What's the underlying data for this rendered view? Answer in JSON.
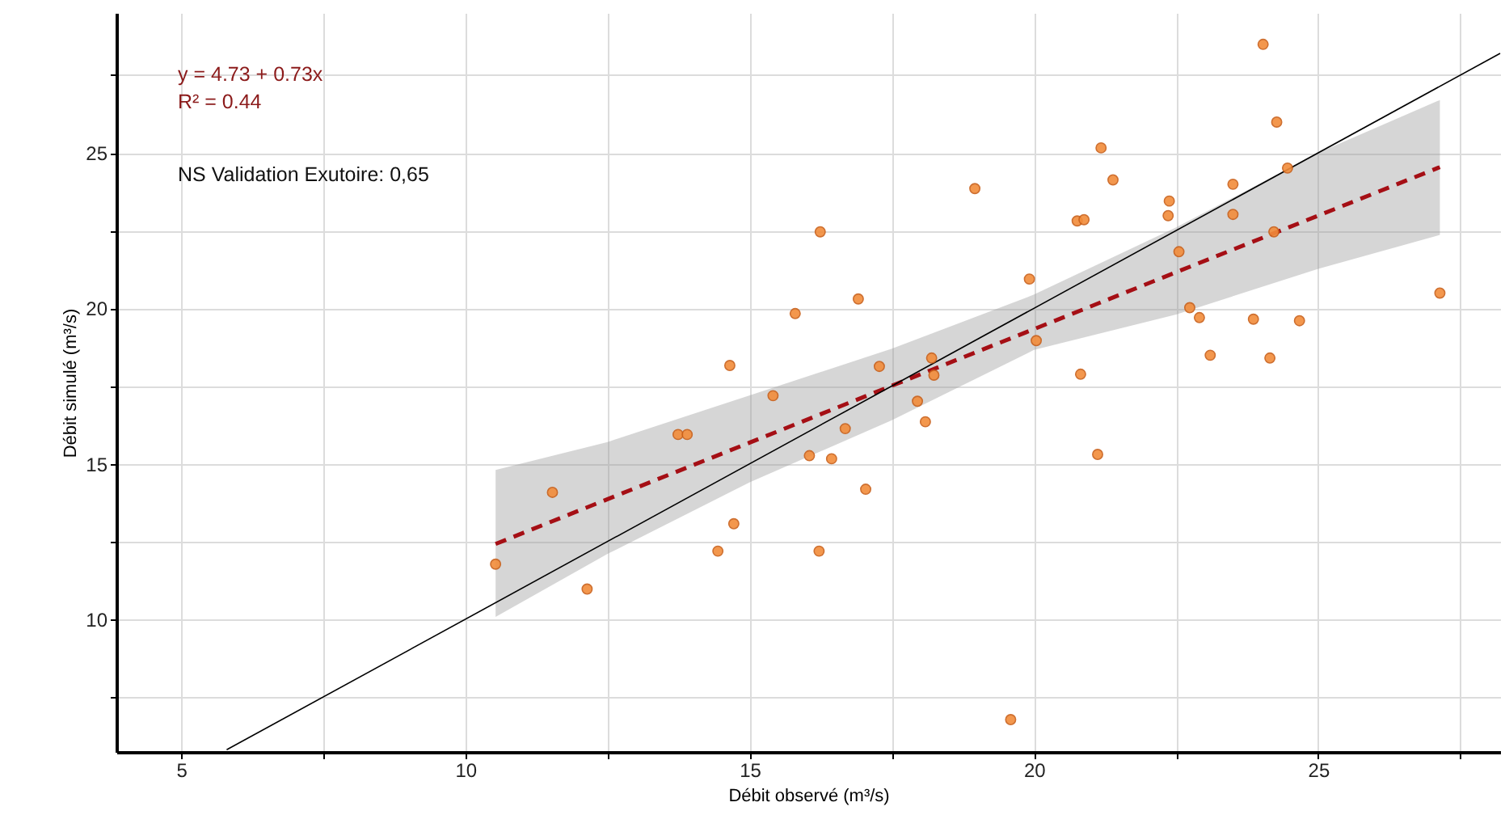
{
  "chart_data": {
    "type": "scatter",
    "xlabel": "Débit observé (m³/s)",
    "ylabel": "Débit simulé (m³/s)",
    "annotations": [
      "y = 4.73 + 0.73x",
      "R² = 0.44",
      "NS Validation Exutoire: 0,65"
    ],
    "xlim": [
      3.86,
      28.2
    ],
    "ylim": [
      5.73,
      29.5
    ],
    "xticks": [
      5,
      {
        "value": 7.5,
        "label": null
      },
      10,
      {
        "value": 12.5,
        "label": null
      },
      15,
      {
        "value": 17.5,
        "label": null
      },
      20,
      {
        "value": 22.5,
        "label": null
      },
      25,
      {
        "value": 27.5,
        "label": null
      }
    ],
    "yticks": [
      {
        "value": 7.5,
        "label": null
      },
      10,
      {
        "value": 12.5,
        "label": null
      },
      15,
      {
        "value": 17.5,
        "label": null
      },
      20,
      {
        "value": 22.5,
        "label": null
      },
      25,
      {
        "value": 27.5,
        "label": null
      }
    ],
    "grid": true,
    "series": [
      {
        "marker": "circle",
        "color": "#f28c3a",
        "x": [
          10.53,
          11.53,
          12.14,
          13.74,
          13.9,
          14.44,
          14.72,
          14.65,
          15.41,
          15.8,
          16.05,
          16.24,
          16.22,
          16.44,
          16.68,
          16.91,
          17.04,
          17.28,
          17.95,
          18.09,
          18.2,
          18.24,
          18.96,
          19.59,
          19.92,
          20.04,
          20.76,
          20.82,
          20.88,
          21.12,
          21.18,
          21.39,
          22.36,
          22.38,
          22.55,
          22.74,
          22.91,
          23.1,
          23.5,
          23.5,
          23.86,
          24.03,
          24.15,
          24.22,
          24.27,
          24.46,
          24.67,
          27.14
        ],
        "values": [
          11.77,
          14.08,
          10.97,
          15.94,
          15.94,
          12.19,
          13.07,
          18.16,
          17.19,
          19.83,
          15.26,
          22.46,
          12.19,
          15.16,
          16.13,
          20.3,
          14.18,
          18.13,
          17.01,
          16.35,
          18.4,
          17.85,
          23.85,
          6.77,
          20.94,
          18.96,
          22.81,
          17.88,
          22.85,
          15.3,
          25.16,
          24.13,
          22.98,
          23.45,
          21.82,
          20.02,
          19.7,
          18.49,
          23.99,
          23.02,
          19.65,
          28.49,
          18.4,
          22.46,
          25.99,
          24.51,
          19.6,
          20.49
        ]
      },
      {
        "type": "line",
        "line_style": "dashed",
        "color": "#a50f15",
        "x": [
          10.53,
          12.5,
          15,
          17.5,
          20,
          22.5,
          25,
          27.14
        ],
        "values": [
          12.42,
          13.86,
          15.68,
          17.51,
          19.33,
          21.16,
          22.98,
          24.54
        ],
        "lower": [
          10.07,
          12.1,
          14.4,
          16.4,
          18.66,
          19.8,
          21.27,
          22.36
        ],
        "upper": [
          14.8,
          15.7,
          17.2,
          18.7,
          20.44,
          22.6,
          25.0,
          26.7
        ]
      },
      {
        "type": "line",
        "line_style": "solid",
        "color": "#000000",
        "x": [
          5.8,
          28.2
        ],
        "values": [
          5.8,
          28.2
        ]
      }
    ]
  }
}
